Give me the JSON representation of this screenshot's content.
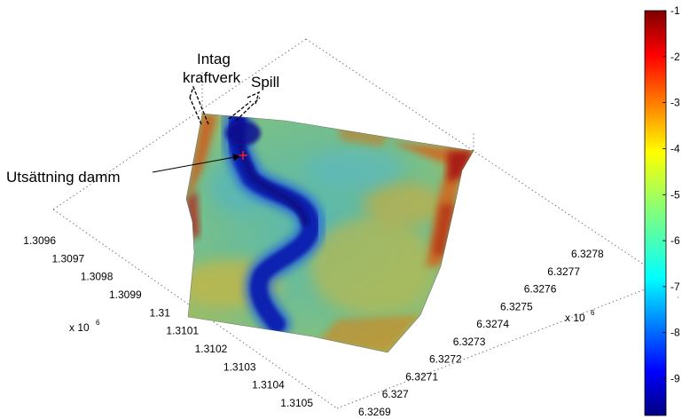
{
  "chart_data": {
    "type": "heatmap",
    "view": "3D surface, top-down oblique",
    "x_axis": {
      "exponent_label": "x 10",
      "exponent_power": "6",
      "ticks": [
        "1.3096",
        "1.3097",
        "1.3098",
        "1.3099",
        "1.31",
        "1.3101",
        "1.3102",
        "1.3103",
        "1.3104",
        "1.3105"
      ]
    },
    "y_axis": {
      "exponent_label": "x 10",
      "exponent_power": "6",
      "ticks": [
        "6.3269",
        "6.327",
        "6.3271",
        "6.3272",
        "6.3273",
        "6.3274",
        "6.3275",
        "6.3276",
        "6.3277",
        "6.3278"
      ]
    },
    "colorbar": {
      "ticks": [
        "-1",
        "-2",
        "-3",
        "-4",
        "-5",
        "-6",
        "-7",
        "-8",
        "-9"
      ],
      "range": [
        -9.8,
        -1
      ],
      "colormap": "jet"
    },
    "grid": true,
    "annotations": [
      {
        "id": "intag",
        "lines": [
          "Intag",
          "kraftverk"
        ]
      },
      {
        "id": "spill",
        "lines": [
          "Spill"
        ]
      },
      {
        "id": "utsattning",
        "lines": [
          "Utsättning damm"
        ]
      }
    ]
  },
  "colors": {
    "deep": "#10148c",
    "mid": "#2a9ac8",
    "shallow_green": "#7cc27a",
    "shallow_yellow": "#c8b840",
    "edge_orange": "#d8701c",
    "edge_red": "#a41414",
    "marker": "#ff2020"
  }
}
